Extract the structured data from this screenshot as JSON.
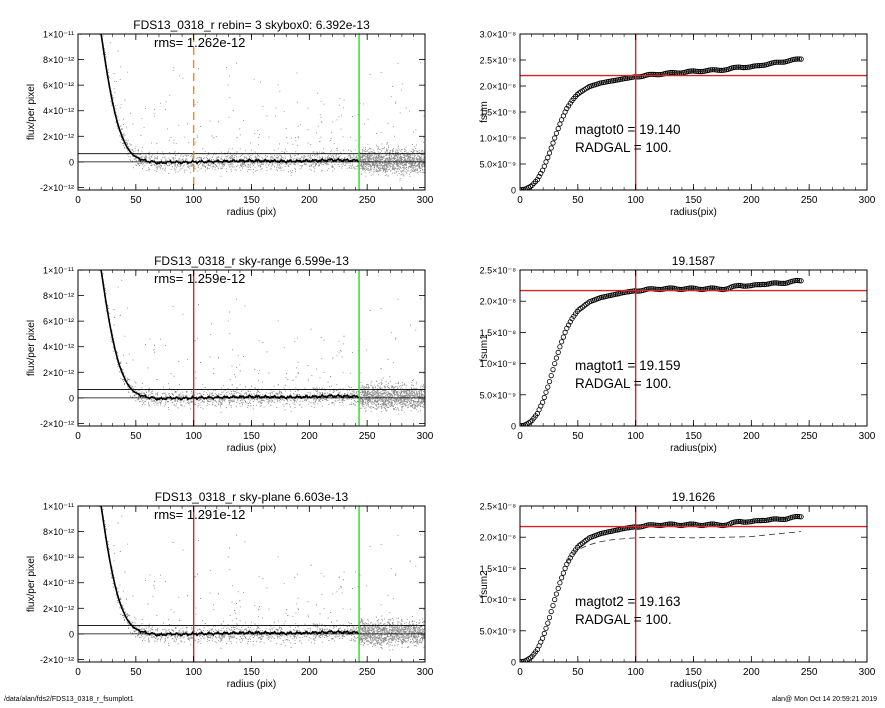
{
  "footer": {
    "path": "/data/alan/fds2/FDS13_0318_r_fsumplot1",
    "user_time": "alan@  Mon Oct 14 20:59:21 2019"
  },
  "colors": {
    "scatter": "#888888",
    "profile": "#000000",
    "green_line": "#22dd22",
    "red_line": "#dd2222",
    "orange_line": "#ff8800"
  },
  "chart_data": [
    {
      "id": "p1",
      "type": "scatter",
      "title": "FDS13_0318_r rebin= 3    skybox0:  6.392e-13",
      "annotation": "rms= 1.262e-12",
      "xlabel": "radius (pix)",
      "ylabel": "flux/per pixel",
      "xlim": [
        0,
        300
      ],
      "ylim": [
        -2.2e-12,
        1e-11
      ],
      "xticks": [
        0,
        50,
        100,
        150,
        200,
        250,
        300
      ],
      "yticks": [
        {
          "v": 1e-11,
          "l": "1×10⁻¹¹"
        },
        {
          "v": 8e-12,
          "l": "8×10⁻¹²"
        },
        {
          "v": 6e-12,
          "l": "6×10⁻¹²"
        },
        {
          "v": 4e-12,
          "l": "4×10⁻¹²"
        },
        {
          "v": 2e-12,
          "l": "2×10⁻¹²"
        },
        {
          "v": 0,
          "l": "0"
        },
        {
          "v": -2e-12,
          "l": "-2×10⁻¹²"
        }
      ],
      "hlines": [
        6.392e-13,
        0
      ],
      "vlines": [
        {
          "x": 100,
          "color": "orange",
          "dashed": true
        },
        {
          "x": 243,
          "color": "green"
        }
      ],
      "profile": {
        "x": [
          20,
          22,
          24,
          26,
          28,
          30,
          32,
          34,
          36,
          38,
          40,
          42,
          45,
          48,
          52,
          56,
          60,
          65,
          70,
          80,
          90,
          100,
          120,
          150,
          180,
          200,
          220,
          243
        ],
        "y": [
          1e-11,
          8.8e-12,
          7.6e-12,
          6.5e-12,
          5.5e-12,
          4.6e-12,
          3.8e-12,
          3.1e-12,
          2.5e-12,
          2e-12,
          1.6e-12,
          1.2e-12,
          8e-13,
          5e-13,
          3e-13,
          1.5e-13,
          5e-14,
          0,
          -1e-13,
          0,
          -5e-14,
          0,
          3e-14,
          1e-13,
          5e-14,
          8e-14,
          1.5e-13,
          1e-13
        ]
      }
    },
    {
      "id": "p2",
      "type": "scatter",
      "title": "FDS13_0318_r sky-range  6.599e-13",
      "annotation": "rms= 1.259e-12",
      "xlabel": "radius (pix)",
      "ylabel": "flux/per pixel",
      "xlim": [
        0,
        300
      ],
      "ylim": [
        -2.2e-12,
        1e-11
      ],
      "xticks": [
        0,
        50,
        100,
        150,
        200,
        250,
        300
      ],
      "yticks": [
        {
          "v": 1e-11,
          "l": "1×10⁻¹¹"
        },
        {
          "v": 8e-12,
          "l": "8×10⁻¹²"
        },
        {
          "v": 6e-12,
          "l": "6×10⁻¹²"
        },
        {
          "v": 4e-12,
          "l": "4×10⁻¹²"
        },
        {
          "v": 2e-12,
          "l": "2×10⁻¹²"
        },
        {
          "v": 0,
          "l": "0"
        },
        {
          "v": -2e-12,
          "l": "-2×10⁻¹²"
        }
      ],
      "hlines": [
        6.599e-13,
        0
      ],
      "vlines": [
        {
          "x": 100,
          "color": "red"
        },
        {
          "x": 243,
          "color": "green"
        }
      ],
      "profile": {
        "x": [
          20,
          22,
          24,
          26,
          28,
          30,
          32,
          34,
          36,
          38,
          40,
          42,
          45,
          48,
          52,
          56,
          60,
          65,
          70,
          80,
          90,
          100,
          120,
          150,
          180,
          200,
          220,
          243
        ],
        "y": [
          1e-11,
          8.8e-12,
          7.6e-12,
          6.5e-12,
          5.5e-12,
          4.6e-12,
          3.8e-12,
          3.1e-12,
          2.5e-12,
          2e-12,
          1.6e-12,
          1.2e-12,
          8e-13,
          5e-13,
          3e-13,
          1.5e-13,
          5e-14,
          0,
          -1e-13,
          0,
          -5e-14,
          0,
          3e-14,
          1e-13,
          5e-14,
          8e-14,
          1.5e-13,
          1e-13
        ]
      }
    },
    {
      "id": "p3",
      "type": "scatter",
      "title": "FDS13_0318_r sky-plane  6.603e-13",
      "annotation": "rms= 1.291e-12",
      "xlabel": "radius (pix)",
      "ylabel": "flux/per pixel",
      "xlim": [
        0,
        300
      ],
      "ylim": [
        -2.2e-12,
        1e-11
      ],
      "xticks": [
        0,
        50,
        100,
        150,
        200,
        250,
        300
      ],
      "yticks": [
        {
          "v": 1e-11,
          "l": "1×10⁻¹¹"
        },
        {
          "v": 8e-12,
          "l": "8×10⁻¹²"
        },
        {
          "v": 6e-12,
          "l": "6×10⁻¹²"
        },
        {
          "v": 4e-12,
          "l": "4×10⁻¹²"
        },
        {
          "v": 2e-12,
          "l": "2×10⁻¹²"
        },
        {
          "v": 0,
          "l": "0"
        },
        {
          "v": -2e-12,
          "l": "-2×10⁻¹²"
        }
      ],
      "hlines": [
        6.603e-13,
        0
      ],
      "vlines": [
        {
          "x": 100,
          "color": "red"
        },
        {
          "x": 243,
          "color": "green"
        }
      ],
      "profile": {
        "x": [
          20,
          22,
          24,
          26,
          28,
          30,
          32,
          34,
          36,
          38,
          40,
          42,
          45,
          48,
          52,
          56,
          60,
          65,
          70,
          80,
          90,
          100,
          120,
          150,
          180,
          200,
          220,
          243
        ],
        "y": [
          1e-11,
          8.8e-12,
          7.6e-12,
          6.5e-12,
          5.5e-12,
          4.6e-12,
          3.8e-12,
          3.1e-12,
          2.5e-12,
          2e-12,
          1.6e-12,
          1.2e-12,
          8e-13,
          5e-13,
          3e-13,
          1.5e-13,
          5e-14,
          0,
          -1e-13,
          0,
          -5e-14,
          0,
          3e-14,
          1e-13,
          5e-14,
          8e-14,
          1.5e-13,
          1e-13
        ]
      }
    },
    {
      "id": "p4",
      "type": "line",
      "title": "",
      "xlabel": "radius(pix)",
      "ylabel": "fsum",
      "xlim": [
        0,
        300
      ],
      "ylim": [
        0,
        3e-08
      ],
      "xticks": [
        0,
        50,
        100,
        150,
        200,
        250,
        300
      ],
      "yticks": [
        {
          "v": 0,
          "l": "0"
        },
        {
          "v": 5e-09,
          "l": "5.0×10⁻⁹"
        },
        {
          "v": 1e-08,
          "l": "1.0×10⁻⁸"
        },
        {
          "v": 1.5e-08,
          "l": "1.5×10⁻⁸"
        },
        {
          "v": 2e-08,
          "l": "2.0×10⁻⁸"
        },
        {
          "v": 2.5e-08,
          "l": "2.5×10⁻⁸"
        },
        {
          "v": 3e-08,
          "l": "3.0×10⁻⁸"
        }
      ],
      "annotations": [
        "magtot0 =  19.140",
        "RADGAL =    100."
      ],
      "hline": 2.2e-08,
      "vline": 100,
      "curve": {
        "x": [
          0,
          5,
          10,
          15,
          20,
          25,
          30,
          35,
          40,
          45,
          50,
          60,
          70,
          80,
          90,
          100,
          120,
          150,
          180,
          190,
          200,
          210,
          220,
          230,
          243
        ],
        "y": [
          0,
          2e-10,
          8e-10,
          2e-09,
          4e-09,
          6.8e-09,
          1e-08,
          1.3e-08,
          1.55e-08,
          1.72e-08,
          1.85e-08,
          1.99e-08,
          2.06e-08,
          2.1e-08,
          2.14e-08,
          2.18e-08,
          2.23e-08,
          2.28e-08,
          2.32e-08,
          2.37e-08,
          2.36e-08,
          2.41e-08,
          2.44e-08,
          2.48e-08,
          2.52e-08
        ]
      }
    },
    {
      "id": "p5",
      "type": "line",
      "title": "19.1587",
      "xlabel": "radius(pix)",
      "ylabel": "fsum1",
      "xlim": [
        0,
        300
      ],
      "ylim": [
        0,
        2.5e-08
      ],
      "xticks": [
        0,
        50,
        100,
        150,
        200,
        250,
        300
      ],
      "yticks": [
        {
          "v": 0,
          "l": "0"
        },
        {
          "v": 5e-09,
          "l": "5.0×10⁻⁹"
        },
        {
          "v": 1e-08,
          "l": "1.0×10⁻⁸"
        },
        {
          "v": 1.5e-08,
          "l": "1.5×10⁻⁸"
        },
        {
          "v": 2e-08,
          "l": "2.0×10⁻⁸"
        },
        {
          "v": 2.5e-08,
          "l": "2.5×10⁻⁸"
        }
      ],
      "annotations": [
        "magtot1 =  19.159",
        "RADGAL =    100."
      ],
      "hline": 2.17e-08,
      "vline": 100,
      "curve": {
        "x": [
          0,
          5,
          10,
          15,
          20,
          25,
          30,
          35,
          40,
          45,
          50,
          60,
          70,
          80,
          90,
          100,
          120,
          150,
          180,
          190,
          200,
          210,
          220,
          230,
          243
        ],
        "y": [
          0,
          2e-10,
          8e-10,
          2e-09,
          4e-09,
          6.8e-09,
          1e-08,
          1.3e-08,
          1.55e-08,
          1.72e-08,
          1.85e-08,
          1.99e-08,
          2.06e-08,
          2.1e-08,
          2.14e-08,
          2.17e-08,
          2.2e-08,
          2.2e-08,
          2.2e-08,
          2.26e-08,
          2.24e-08,
          2.28e-08,
          2.28e-08,
          2.3e-08,
          2.33e-08
        ]
      }
    },
    {
      "id": "p6",
      "type": "line",
      "title": "19.1626",
      "xlabel": "radius(pix)",
      "ylabel": "fsum2",
      "xlim": [
        0,
        300
      ],
      "ylim": [
        0,
        2.5e-08
      ],
      "xticks": [
        0,
        50,
        100,
        150,
        200,
        250,
        300
      ],
      "yticks": [
        {
          "v": 0,
          "l": "0"
        },
        {
          "v": 5e-09,
          "l": "5.0×10⁻⁹"
        },
        {
          "v": 1e-08,
          "l": "1.0×10⁻⁸"
        },
        {
          "v": 1.5e-08,
          "l": "1.5×10⁻⁸"
        },
        {
          "v": 2e-08,
          "l": "2.0×10⁻⁸"
        },
        {
          "v": 2.5e-08,
          "l": "2.5×10⁻⁸"
        }
      ],
      "annotations": [
        "magtot2 =  19.163",
        "RADGAL =    100."
      ],
      "hline": 2.17e-08,
      "vline": 100,
      "curve": {
        "x": [
          0,
          5,
          10,
          15,
          20,
          25,
          30,
          35,
          40,
          45,
          50,
          60,
          70,
          80,
          90,
          100,
          120,
          150,
          180,
          190,
          200,
          210,
          220,
          230,
          243
        ],
        "y": [
          0,
          2e-10,
          8e-10,
          2e-09,
          4e-09,
          6.8e-09,
          1e-08,
          1.3e-08,
          1.55e-08,
          1.72e-08,
          1.85e-08,
          1.99e-08,
          2.06e-08,
          2.1e-08,
          2.14e-08,
          2.17e-08,
          2.2e-08,
          2.2e-08,
          2.2e-08,
          2.26e-08,
          2.24e-08,
          2.28e-08,
          2.28e-08,
          2.3e-08,
          2.33e-08
        ]
      },
      "dashed_curve": {
        "x": [
          40,
          50,
          60,
          70,
          80,
          100,
          120,
          150,
          180,
          200,
          220,
          243
        ],
        "y": [
          1.6e-08,
          1.8e-08,
          1.88e-08,
          1.93e-08,
          1.96e-08,
          1.99e-08,
          2e-08,
          1.99e-08,
          2e-08,
          2.01e-08,
          2.05e-08,
          2.09e-08
        ]
      }
    }
  ]
}
